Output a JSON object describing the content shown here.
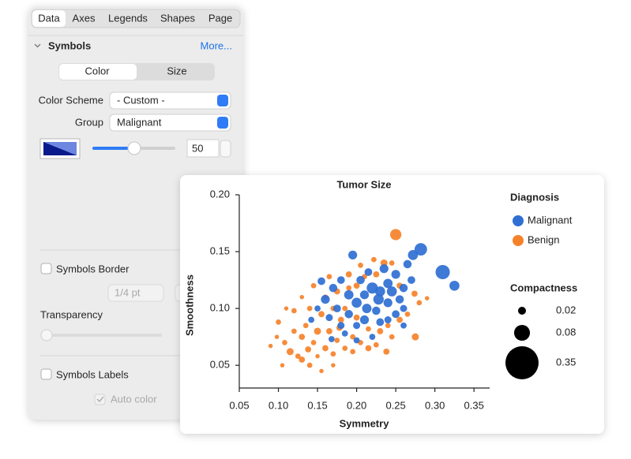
{
  "panel": {
    "tabs": [
      "Data",
      "Axes",
      "Legends",
      "Shapes",
      "Page"
    ],
    "section": "Symbols",
    "more": "More...",
    "segments": [
      "Color",
      "Size"
    ],
    "color_scheme": {
      "label": "Color Scheme",
      "value": "- Custom -"
    },
    "group": {
      "label": "Group",
      "value": "Malignant"
    },
    "slider_value": 50,
    "symbols_border": "Symbols Border",
    "border_width": "1/4 pt",
    "transparency": "Transparency",
    "symbols_labels": "Symbols Labels",
    "auto_color": "Auto color"
  },
  "chart_data": {
    "type": "scatter",
    "title": "Tumor Size",
    "x_label": "Symmetry",
    "y_label": "Smoothness",
    "xlim": [
      0.05,
      0.37
    ],
    "ylim": [
      0.03,
      0.2
    ],
    "xticks": [
      0.05,
      {
        "value": 0.1,
        "label": "0.10"
      },
      0.15,
      {
        "value": 0.2,
        "label": "0.20"
      },
      0.25,
      {
        "value": 0.3,
        "label": "0.30"
      },
      0.35
    ],
    "yticks": [
      0.05,
      {
        "value": 0.1,
        "label": "0.10"
      },
      0.15,
      {
        "value": 0.2,
        "label": "0.20"
      }
    ],
    "legend_title": "Diagnosis",
    "size_legend": {
      "title": "Compactness",
      "values": [
        0.02,
        0.08,
        0.35
      ]
    },
    "series": [
      {
        "name": "Benign",
        "color": "#f5822a",
        "x": [
          0.25,
          0.275,
          0.274,
          0.28,
          0.29,
          0.1,
          0.098,
          0.09,
          0.115,
          0.125,
          0.105,
          0.13,
          0.14,
          0.155,
          0.17,
          0.16,
          0.145,
          0.13,
          0.12,
          0.135,
          0.15,
          0.165,
          0.175,
          0.185,
          0.195,
          0.205,
          0.215,
          0.225,
          0.238,
          0.245,
          0.18,
          0.17,
          0.155,
          0.14,
          0.16,
          0.175,
          0.19,
          0.2,
          0.21,
          0.225,
          0.235,
          0.222,
          0.205,
          0.19,
          0.165,
          0.145,
          0.13,
          0.12,
          0.11,
          0.2,
          0.215,
          0.23,
          0.24,
          0.255,
          0.265,
          0.195,
          0.185,
          0.138,
          0.108,
          0.15,
          0.17,
          0.245,
          0.255,
          0.178
        ],
        "values": [
          0.165,
          0.075,
          0.113,
          0.105,
          0.109,
          0.088,
          0.075,
          0.067,
          0.062,
          0.058,
          0.05,
          0.055,
          0.05,
          0.045,
          0.06,
          0.065,
          0.07,
          0.075,
          0.08,
          0.085,
          0.08,
          0.08,
          0.072,
          0.065,
          0.062,
          0.07,
          0.065,
          0.068,
          0.062,
          0.075,
          0.09,
          0.1,
          0.095,
          0.1,
          0.11,
          0.115,
          0.118,
          0.12,
          0.128,
          0.13,
          0.14,
          0.143,
          0.138,
          0.13,
          0.128,
          0.12,
          0.11,
          0.098,
          0.1,
          0.092,
          0.082,
          0.08,
          0.085,
          0.09,
          0.095,
          0.075,
          0.1,
          0.064,
          0.07,
          0.058,
          0.05,
          0.14,
          0.12,
          0.083
        ],
        "sizes": [
          0.04,
          0.016,
          0.012,
          0.009,
          0.006,
          0.009,
          0.006,
          0.006,
          0.016,
          0.009,
          0.006,
          0.012,
          0.009,
          0.006,
          0.009,
          0.012,
          0.009,
          0.012,
          0.009,
          0.009,
          0.016,
          0.012,
          0.009,
          0.009,
          0.009,
          0.009,
          0.012,
          0.009,
          0.012,
          0.009,
          0.012,
          0.009,
          0.012,
          0.009,
          0.009,
          0.012,
          0.009,
          0.012,
          0.009,
          0.012,
          0.016,
          0.009,
          0.009,
          0.012,
          0.009,
          0.009,
          0.006,
          0.009,
          0.006,
          0.012,
          0.009,
          0.012,
          0.009,
          0.012,
          0.009,
          0.009,
          0.009,
          0.012,
          0.009,
          0.006,
          0.006,
          0.009,
          0.012,
          0.012
        ]
      },
      {
        "name": "Malignant",
        "color": "#2f6fd2",
        "x": [
          0.31,
          0.325,
          0.282,
          0.272,
          0.25,
          0.27,
          0.26,
          0.24,
          0.23,
          0.22,
          0.21,
          0.2,
          0.195,
          0.18,
          0.17,
          0.16,
          0.175,
          0.19,
          0.21,
          0.225,
          0.24,
          0.25,
          0.26,
          0.23,
          0.2,
          0.18,
          0.165,
          0.15,
          0.19,
          0.205,
          0.215,
          0.235,
          0.245,
          0.255,
          0.228,
          0.185,
          0.168,
          0.2,
          0.213,
          0.24,
          0.26,
          0.155,
          0.265,
          0.142,
          0.22
        ],
        "values": [
          0.132,
          0.12,
          0.152,
          0.147,
          0.13,
          0.125,
          0.118,
          0.122,
          0.115,
          0.118,
          0.112,
          0.105,
          0.147,
          0.125,
          0.118,
          0.108,
          0.1,
          0.095,
          0.09,
          0.098,
          0.105,
          0.095,
          0.1,
          0.088,
          0.085,
          0.085,
          0.092,
          0.1,
          0.112,
          0.125,
          0.132,
          0.135,
          0.115,
          0.108,
          0.108,
          0.078,
          0.073,
          0.072,
          0.1,
          0.09,
          0.085,
          0.124,
          0.139,
          0.09,
          0.075
        ],
        "sizes": [
          0.065,
          0.032,
          0.05,
          0.032,
          0.025,
          0.019,
          0.022,
          0.028,
          0.032,
          0.04,
          0.025,
          0.032,
          0.025,
          0.019,
          0.022,
          0.025,
          0.019,
          0.022,
          0.025,
          0.022,
          0.025,
          0.019,
          0.016,
          0.019,
          0.016,
          0.016,
          0.016,
          0.012,
          0.028,
          0.022,
          0.019,
          0.025,
          0.032,
          0.022,
          0.035,
          0.012,
          0.012,
          0.012,
          0.028,
          0.016,
          0.012,
          0.019,
          0.022,
          0.012,
          0.012
        ]
      }
    ]
  }
}
